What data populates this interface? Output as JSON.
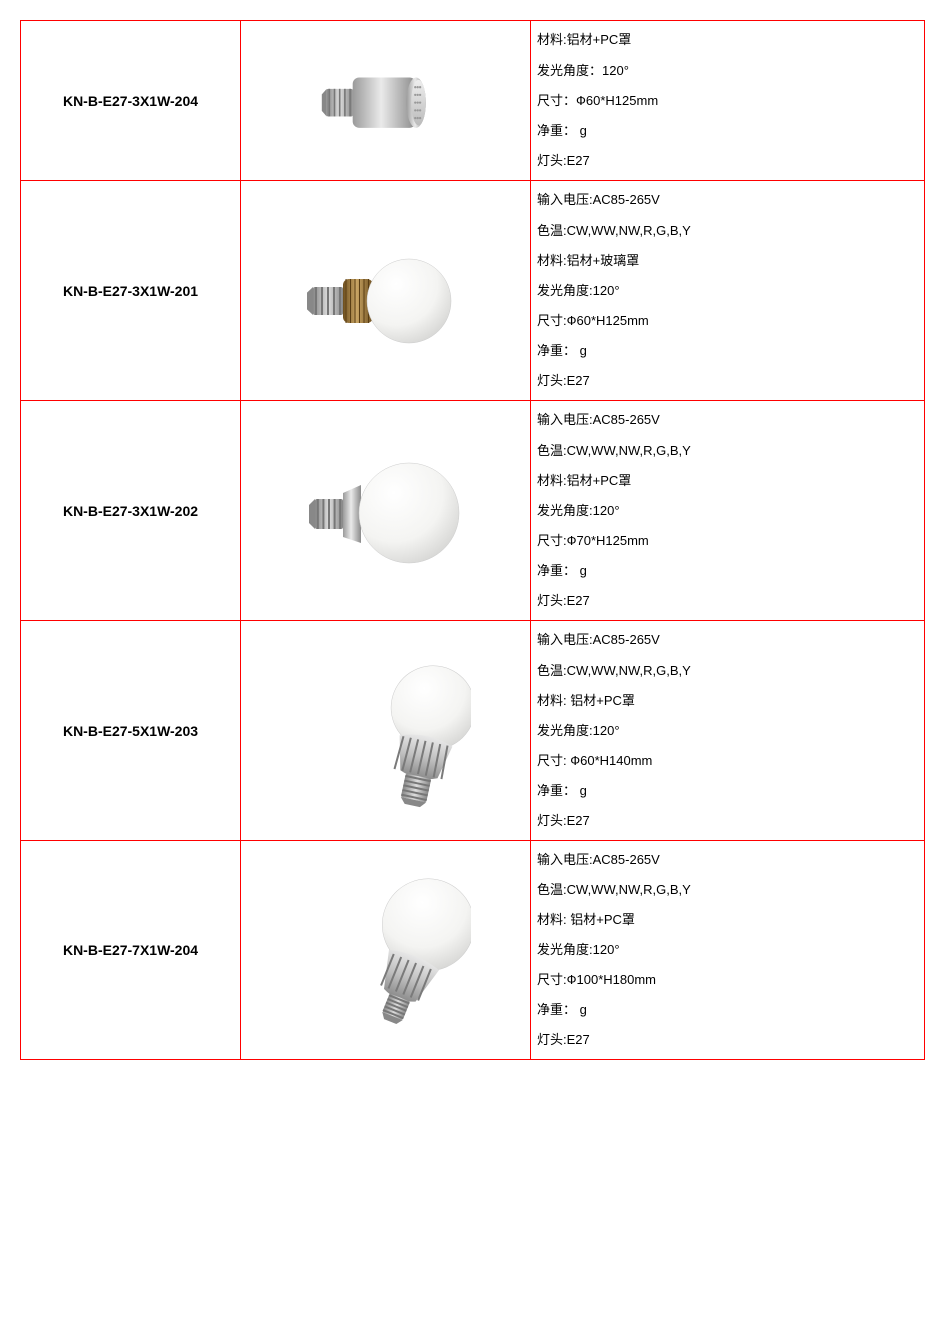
{
  "labels": {
    "voltage": "输入电压",
    "color_temp": "色温",
    "material": "材料",
    "angle": "发光角度",
    "size": "尺寸",
    "weight": "净重",
    "base": "灯头"
  },
  "colors": {
    "border": "#ff0000",
    "text": "#000000",
    "bg": "#ffffff",
    "bulb_metal": "#c0c0c0",
    "bulb_metal_dark": "#8a8a8a",
    "bulb_glass": "#f4f4f2",
    "bulb_glass_shadow": "#d8d8d6",
    "bulb_gold": "#9e7a3a",
    "bulb_gold_light": "#c9a564"
  },
  "rows": [
    {
      "model": "KN-B-E27-3X1W-204",
      "image": "cylinder_silver",
      "short": true,
      "specs": [
        {
          "k": "材料",
          "v": ":铝材+PC罩"
        },
        {
          "k": "发光角度",
          "v": "：120°"
        },
        {
          "k": "尺寸",
          "v": "：Ф60*H125mm"
        },
        {
          "k": "净重",
          "v": "：  g"
        },
        {
          "k": "灯头",
          "v": ":E27"
        }
      ]
    },
    {
      "model": "KN-B-E27-3X1W-201",
      "image": "globe_gold",
      "specs": [
        {
          "k": "输入电压",
          "v": ":AC85-265V"
        },
        {
          "k": "色温",
          "v": ":CW,WW,NW,R,G,B,Y"
        },
        {
          "k": "材料",
          "v": ":铝材+玻璃罩"
        },
        {
          "k": "发光角度",
          "v": ":120°"
        },
        {
          "k": "尺寸",
          "v": ":Ф60*H125mm"
        },
        {
          "k": "净重",
          "v": "：  g"
        },
        {
          "k": "灯头",
          "v": ":E27"
        }
      ]
    },
    {
      "model": "KN-B-E27-3X1W-202",
      "image": "globe_silver_big",
      "specs": [
        {
          "k": "输入电压",
          "v": ":AC85-265V"
        },
        {
          "k": "色温",
          "v": ":CW,WW,NW,R,G,B,Y"
        },
        {
          "k": "材料",
          "v": ":铝材+PC罩"
        },
        {
          "k": "发光角度",
          "v": ":120°"
        },
        {
          "k": "尺寸",
          "v": ":Ф70*H125mm"
        },
        {
          "k": "净重",
          "v": "：  g"
        },
        {
          "k": "灯头",
          "v": ":E27"
        }
      ]
    },
    {
      "model": "KN-B-E27-5X1W-203",
      "image": "globe_silver_finned",
      "specs": [
        {
          "k": "输入电压",
          "v": ":AC85-265V"
        },
        {
          "k": "色温",
          "v": ":CW,WW,NW,R,G,B,Y"
        },
        {
          "k": "材料",
          "v": ": 铝材+PC罩"
        },
        {
          "k": "发光角度",
          "v": ":120°"
        },
        {
          "k": "尺寸",
          "v": ": Ф60*H140mm"
        },
        {
          "k": "净重",
          "v": "：  g"
        },
        {
          "k": "灯头",
          "v": ":E27"
        }
      ]
    },
    {
      "model": "KN-B-E27-7X1W-204",
      "image": "globe_silver_tilt",
      "specs": [
        {
          "k": "输入电压",
          "v": ":AC85-265V"
        },
        {
          "k": "色温",
          "v": ":CW,WW,NW,R,G,B,Y"
        },
        {
          "k": "材料",
          "v": ": 铝材+PC罩"
        },
        {
          "k": "发光角度",
          "v": ":120°"
        },
        {
          "k": "尺寸",
          "v": ":Ф100*H180mm"
        },
        {
          "k": "净重",
          "v": "：  g"
        },
        {
          "k": "灯头",
          "v": ":E27"
        }
      ]
    }
  ]
}
